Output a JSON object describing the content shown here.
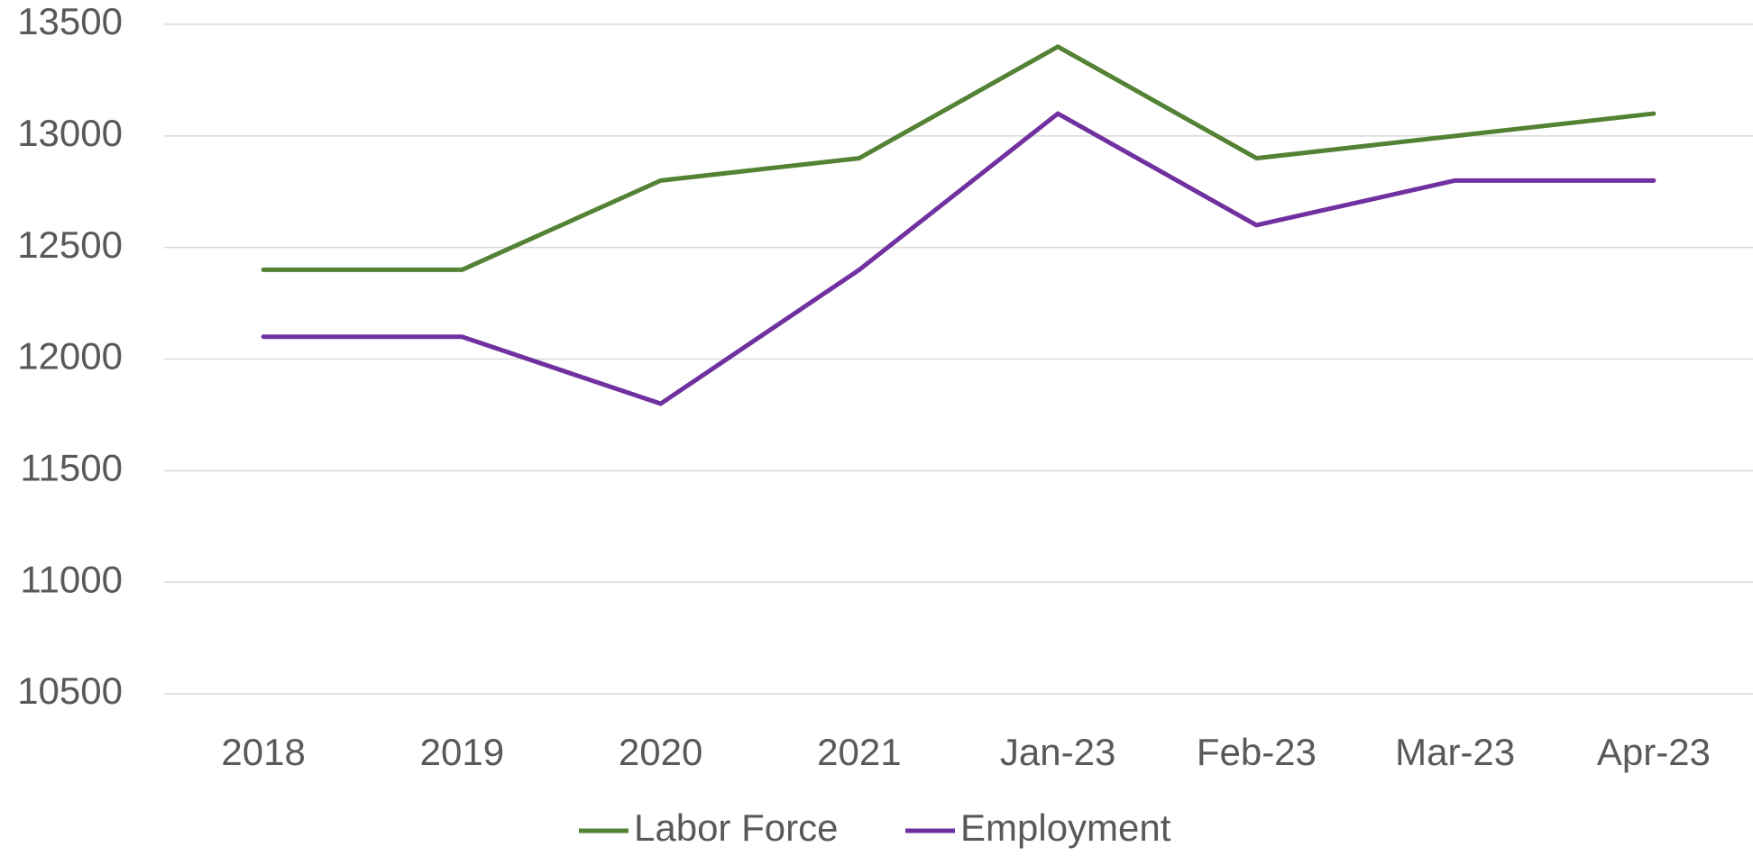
{
  "chart_data": {
    "type": "line",
    "categories": [
      "2018",
      "2019",
      "2020",
      "2021",
      "Jan-23",
      "Feb-23",
      "Mar-23",
      "Apr-23"
    ],
    "series": [
      {
        "name": "Labor Force",
        "color": "#548235",
        "values": [
          12400,
          12400,
          12800,
          12900,
          13400,
          12900,
          13000,
          13100
        ]
      },
      {
        "name": "Employment",
        "color": "#7030a0",
        "values": [
          12100,
          12100,
          11800,
          12400,
          13100,
          12600,
          12800,
          12800
        ]
      }
    ],
    "ylim": [
      10500,
      13500
    ],
    "yticks": [
      10500,
      11000,
      11500,
      12000,
      12500,
      13000,
      13500
    ],
    "grid": true,
    "legend": "bottom"
  }
}
